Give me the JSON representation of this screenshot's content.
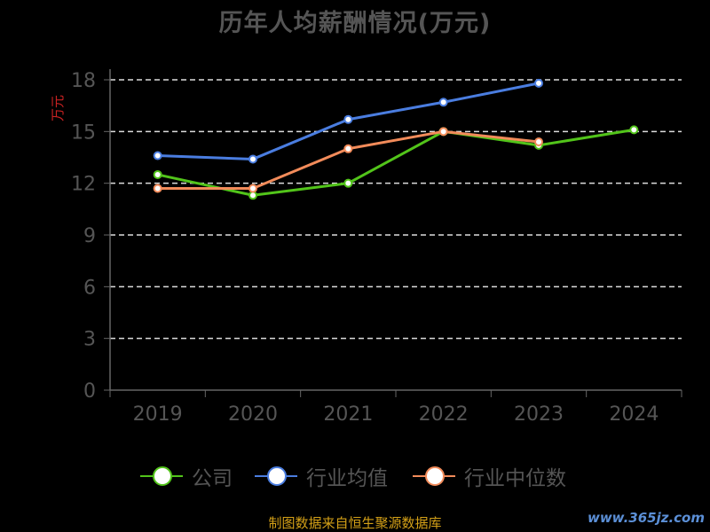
{
  "title": "历年人均薪酬情况(万元)",
  "source": "制图数据来自恒生聚源数据库",
  "watermark": "www.365jz.com",
  "chart_data": {
    "type": "line",
    "title": "历年人均薪酬情况(万元)",
    "ylabel": "万元",
    "xlabel": "",
    "categories": [
      "2019",
      "2020",
      "2021",
      "2022",
      "2023",
      "2024"
    ],
    "ylim": [
      0,
      18
    ],
    "yticks": [
      0,
      3,
      6,
      9,
      12,
      15,
      18
    ],
    "grid": true,
    "legend_position": "bottom",
    "series": [
      {
        "name": "公司",
        "color": "#52c41a",
        "values": [
          12.5,
          11.3,
          12.0,
          15.0,
          14.2,
          15.1
        ]
      },
      {
        "name": "行业均值",
        "color": "#4a7de0",
        "values": [
          13.6,
          13.4,
          15.7,
          16.7,
          17.8,
          null
        ]
      },
      {
        "name": "行业中位数",
        "color": "#f28b5a",
        "values": [
          11.7,
          11.7,
          14.0,
          15.0,
          14.4,
          null
        ]
      }
    ]
  }
}
